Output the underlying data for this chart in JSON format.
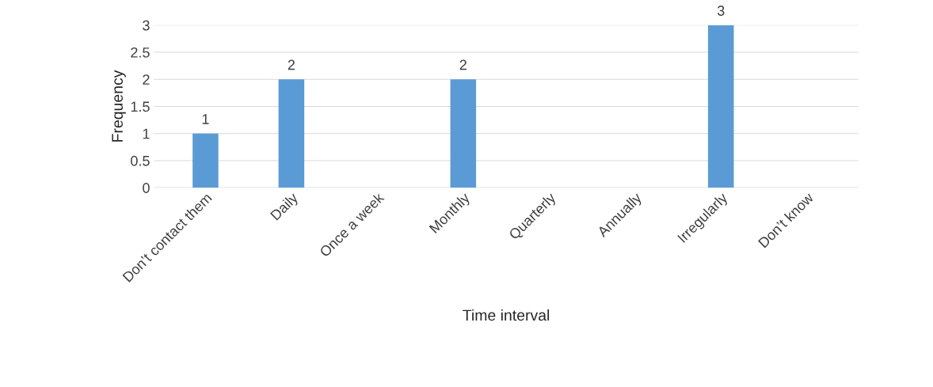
{
  "chart_data": {
    "type": "bar",
    "xlabel": "Time interval",
    "ylabel": "Frequency",
    "categories": [
      "Don’t contact them",
      "Daily",
      "Once a week",
      "Monthly",
      "Quarterly",
      "Annually",
      "Irregularly",
      "Don’t know"
    ],
    "values": [
      1,
      2,
      0,
      2,
      0,
      0,
      3,
      0
    ],
    "value_labels": [
      "1",
      "2",
      null,
      "2",
      null,
      null,
      "3",
      null
    ],
    "color": "#5b9bd5",
    "ylim": [
      0,
      3
    ],
    "yticks": [
      0,
      0.5,
      1,
      1.5,
      2,
      2.5,
      3
    ],
    "grid": "y",
    "legend": false
  }
}
